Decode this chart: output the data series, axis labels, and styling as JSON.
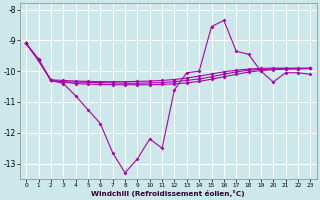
{
  "xlabel": "Windchill (Refroidissement éolien,°C)",
  "background_color": "#cce8ea",
  "grid_color": "#ffffff",
  "line_color": "#aa00aa",
  "x": [
    0,
    1,
    2,
    3,
    4,
    5,
    6,
    7,
    8,
    9,
    10,
    11,
    12,
    13,
    14,
    15,
    16,
    17,
    18,
    19,
    20,
    21,
    22,
    23
  ],
  "line1": [
    -9.1,
    -9.6,
    -10.3,
    -10.4,
    -10.8,
    -11.25,
    -11.7,
    -12.65,
    -13.3,
    -12.85,
    -12.2,
    -12.5,
    -10.6,
    -10.05,
    -10.0,
    -8.55,
    -8.35,
    -9.35,
    -9.45,
    -10.0,
    -10.35,
    -10.05,
    -10.05,
    -10.1
  ],
  "line2": [
    -9.1,
    -9.65,
    -10.3,
    -10.35,
    -10.35,
    -10.36,
    -10.37,
    -10.38,
    -10.39,
    -10.39,
    -10.38,
    -10.37,
    -10.34,
    -10.3,
    -10.25,
    -10.18,
    -10.1,
    -10.02,
    -9.97,
    -9.94,
    -9.93,
    -9.92,
    -9.92,
    -9.91
  ],
  "line3": [
    -9.1,
    -9.65,
    -10.3,
    -10.35,
    -10.4,
    -10.42,
    -10.43,
    -10.44,
    -10.44,
    -10.44,
    -10.44,
    -10.43,
    -10.41,
    -10.38,
    -10.33,
    -10.26,
    -10.18,
    -10.1,
    -10.03,
    -9.98,
    -9.95,
    -9.93,
    -9.92,
    -9.91
  ],
  "line4": [
    -9.1,
    -9.65,
    -10.28,
    -10.3,
    -10.32,
    -10.33,
    -10.34,
    -10.34,
    -10.34,
    -10.33,
    -10.32,
    -10.3,
    -10.27,
    -10.22,
    -10.16,
    -10.09,
    -10.02,
    -9.97,
    -9.93,
    -9.91,
    -9.9,
    -9.9,
    -9.9,
    -9.9
  ],
  "ylim": [
    -13.5,
    -7.8
  ],
  "xlim": [
    -0.5,
    23.5
  ],
  "yticks": [
    -8,
    -9,
    -10,
    -11,
    -12,
    -13
  ],
  "xticks": [
    0,
    1,
    2,
    3,
    4,
    5,
    6,
    7,
    8,
    9,
    10,
    11,
    12,
    13,
    14,
    15,
    16,
    17,
    18,
    19,
    20,
    21,
    22,
    23
  ]
}
